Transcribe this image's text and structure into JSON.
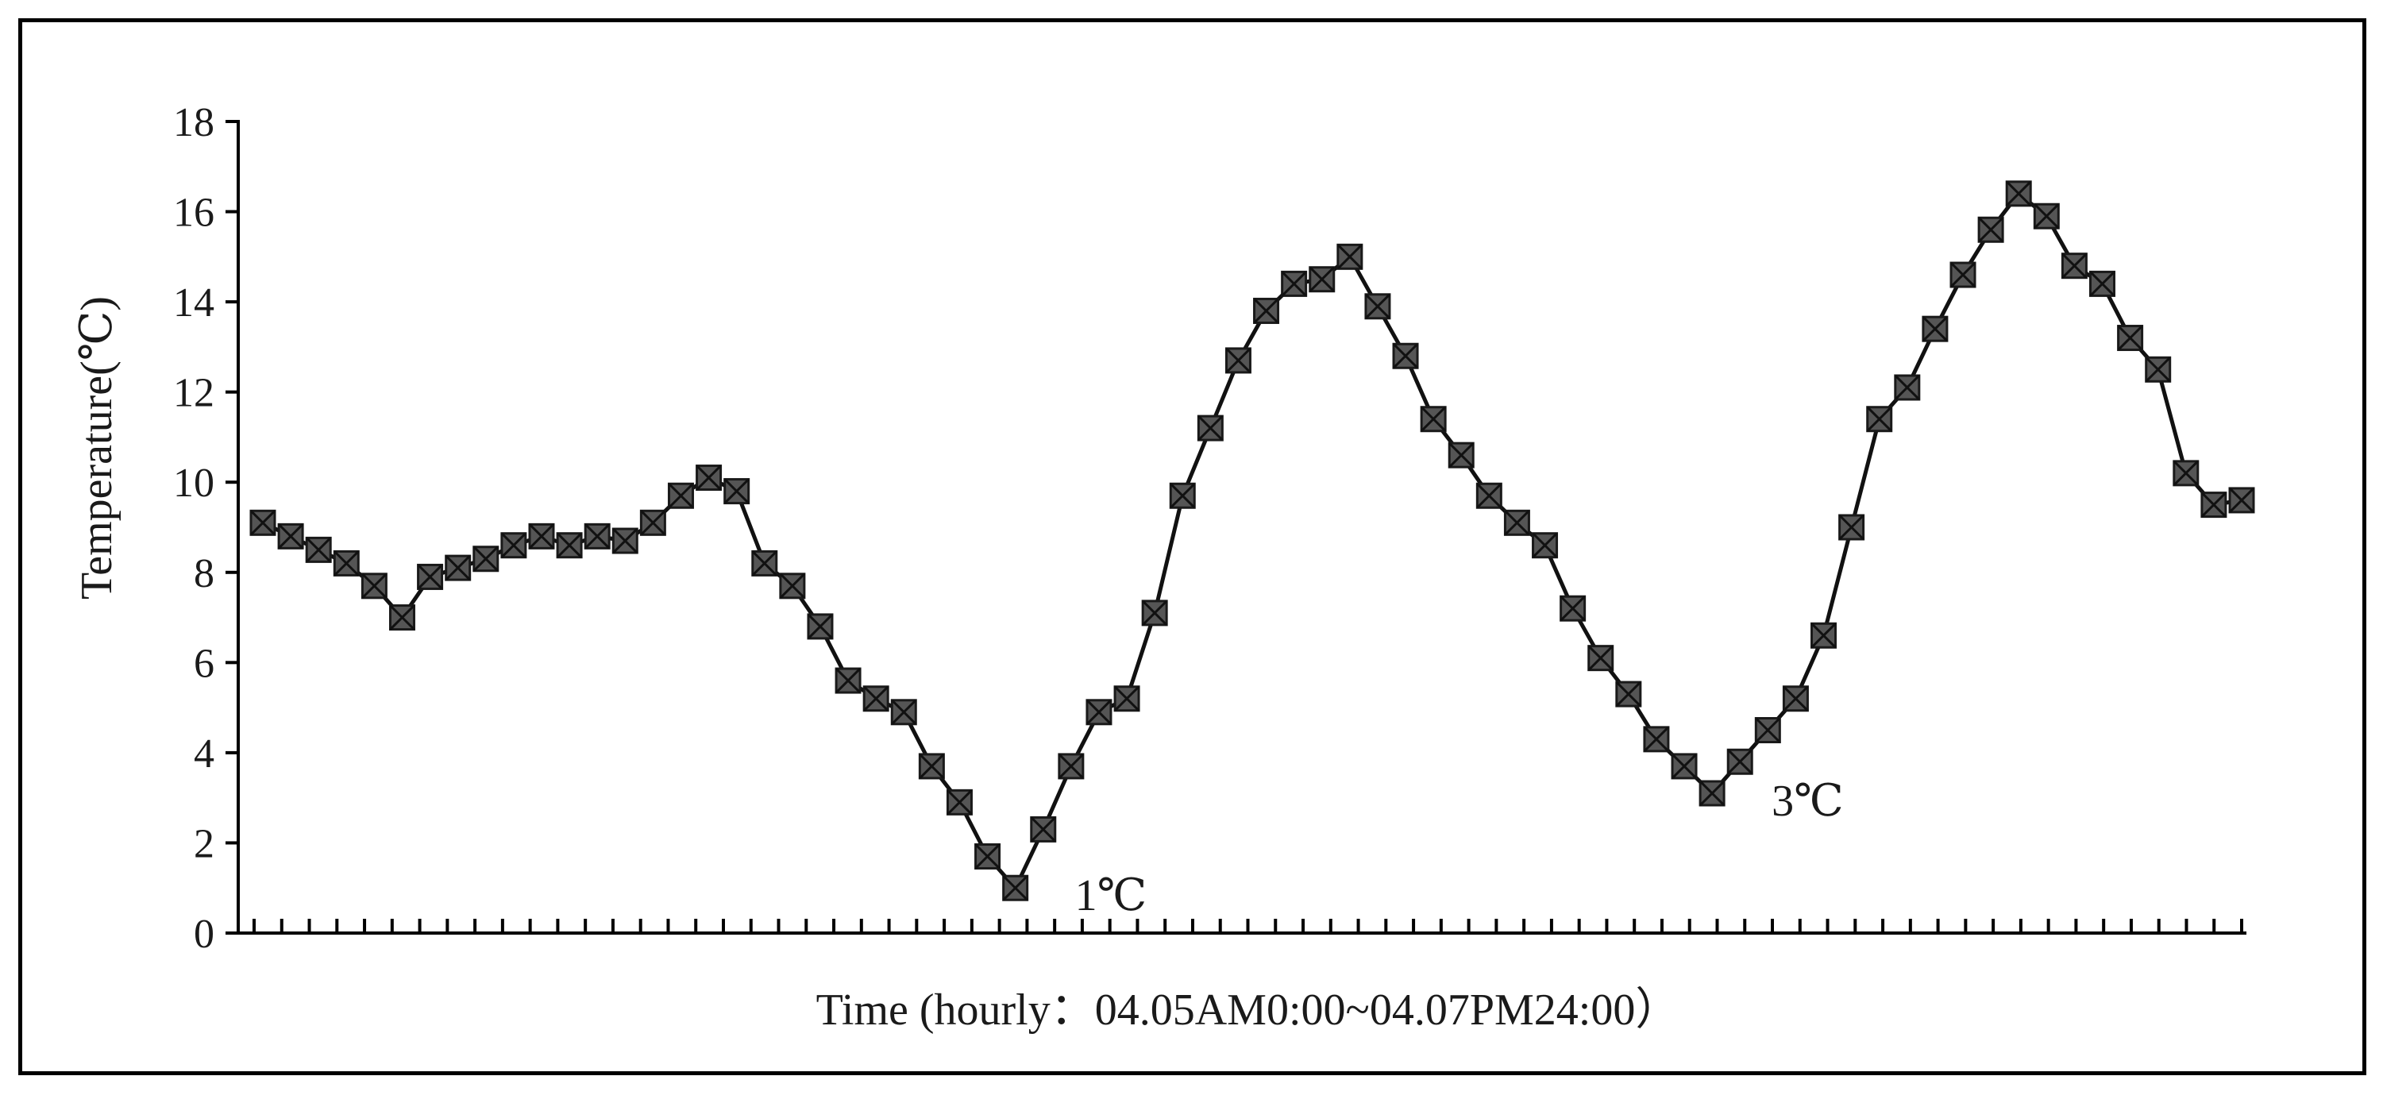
{
  "chart_data": {
    "type": "line",
    "title": "",
    "xlabel": "Time (hourly：04.05AM0:00~04.07PM24:00）",
    "ylabel": "Temperature(℃)",
    "ylim": [
      0,
      18
    ],
    "yticks": [
      "0",
      "2",
      "4",
      "6",
      "8",
      "10",
      "12",
      "14",
      "16",
      "18"
    ],
    "x_count": 72,
    "grid": false,
    "legend": "none",
    "line_color": "#111111",
    "marker_color": "#555555",
    "marker": "square-with-x",
    "series": [
      {
        "values": [
          9.1,
          8.8,
          8.5,
          8.2,
          7.7,
          7.0,
          7.9,
          8.1,
          8.3,
          8.6,
          8.8,
          8.6,
          8.8,
          8.7,
          9.1,
          9.7,
          10.1,
          9.8,
          8.2,
          7.7,
          6.8,
          5.6,
          5.2,
          4.9,
          3.7,
          2.9,
          1.7,
          1.0,
          2.3,
          3.7,
          4.9,
          5.2,
          7.1,
          9.7,
          11.2,
          12.7,
          13.8,
          14.4,
          14.5,
          15.0,
          13.9,
          12.8,
          11.4,
          10.6,
          9.7,
          9.1,
          8.6,
          7.2,
          6.1,
          5.3,
          4.3,
          3.7,
          3.1,
          3.8,
          4.5,
          5.2,
          6.6,
          9.0,
          11.4,
          12.1,
          13.4,
          14.6,
          15.6,
          16.4,
          15.9,
          14.8,
          14.4,
          13.2,
          12.5,
          10.2,
          9.5,
          9.6
        ]
      }
    ],
    "annotations": [
      {
        "text": "1℃",
        "x_index": 27,
        "y": 1.0
      },
      {
        "text": "3℃",
        "x_index": 52,
        "y": 3.1
      }
    ]
  }
}
